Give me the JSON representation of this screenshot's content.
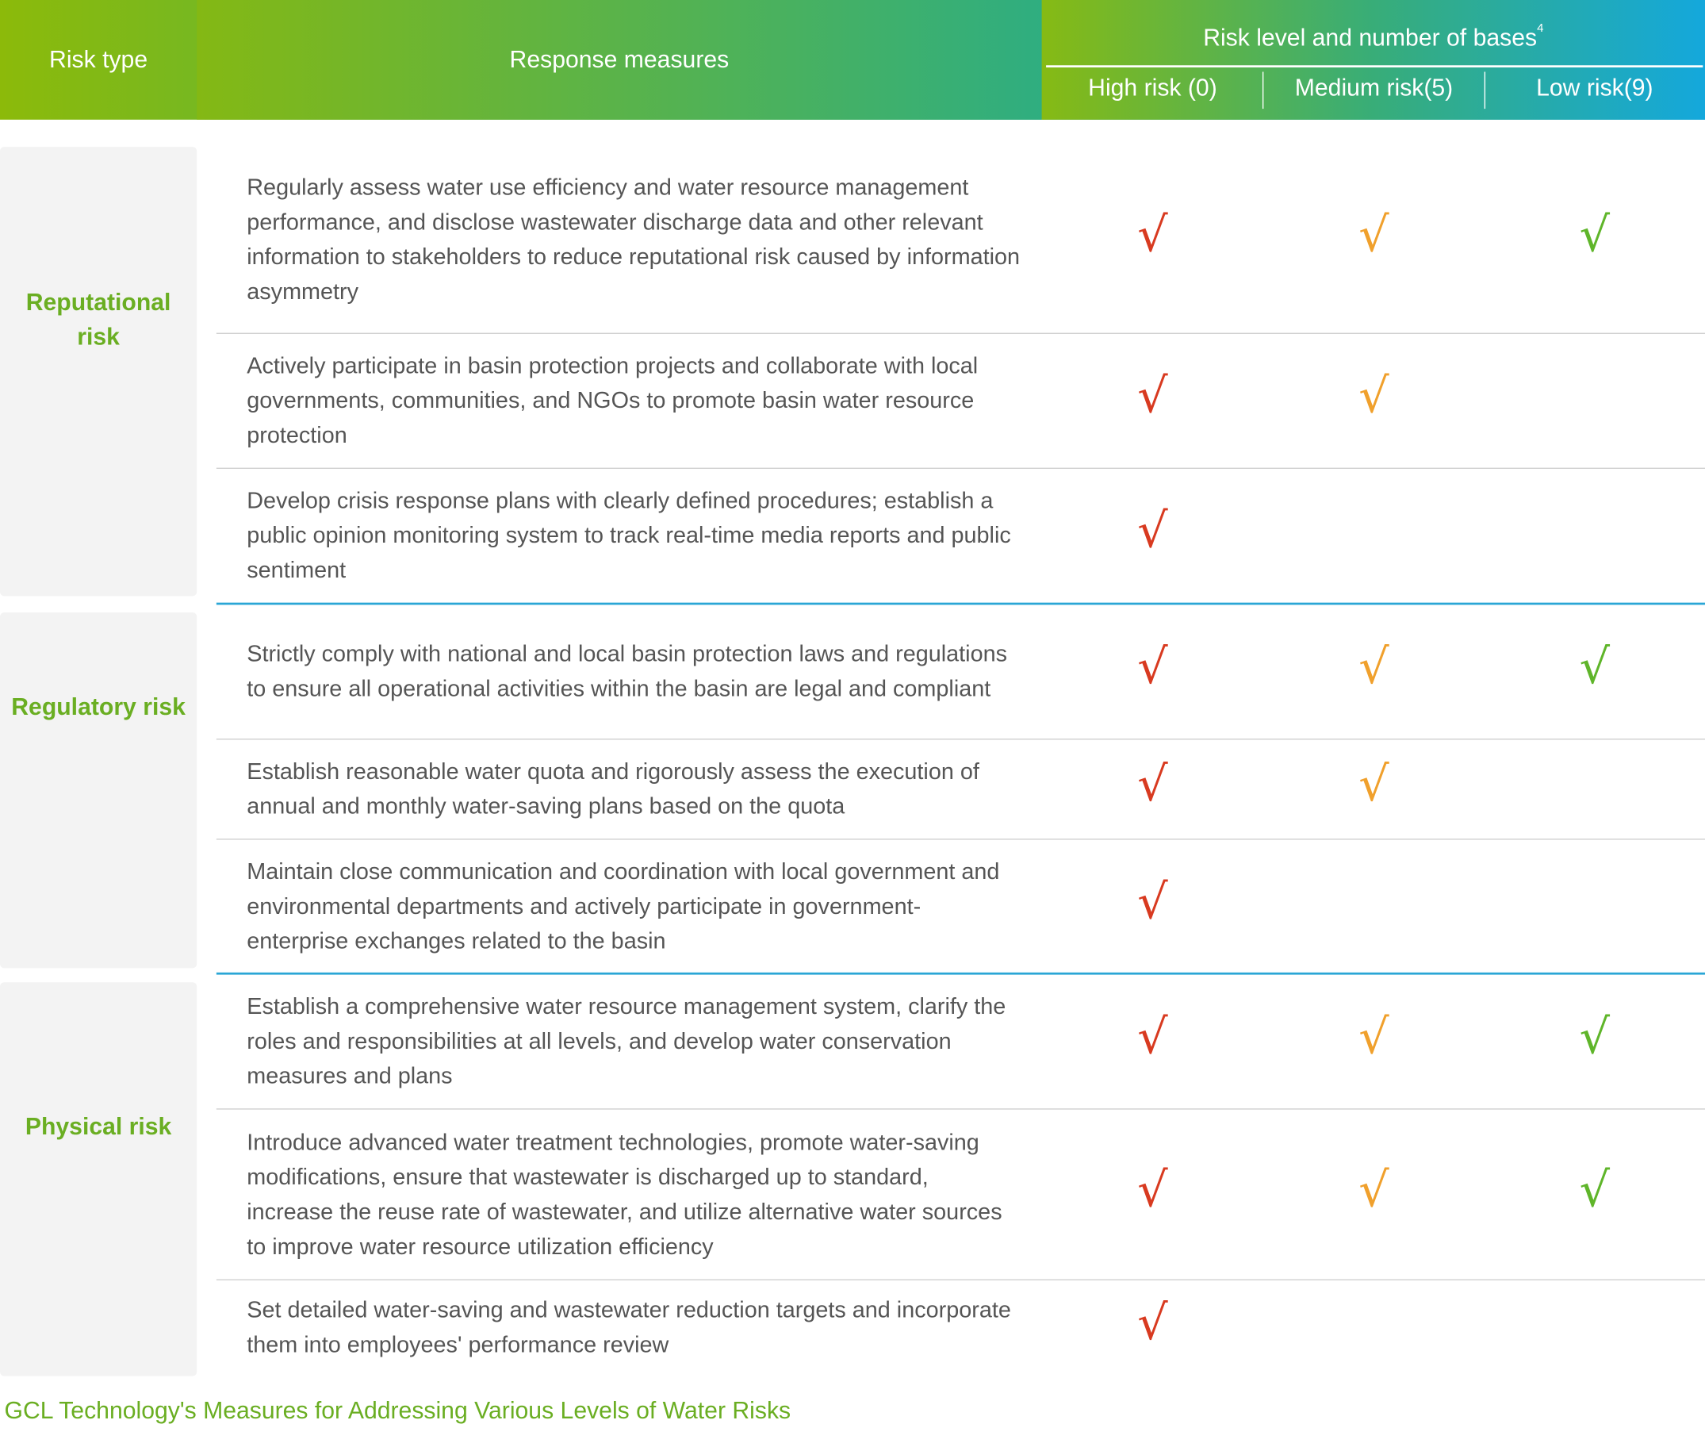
{
  "header": {
    "risk_type": "Risk type",
    "response_measures": "Response measures",
    "risk_level": "Risk level and number of bases",
    "footnote": "4",
    "levels": [
      "High risk (0)",
      "Medium risk(5)",
      "Low risk(9)"
    ]
  },
  "groups": [
    {
      "name": "Reputational risk",
      "rows": [
        {
          "measure": "Regularly assess water use efficiency and water resource management performance, and disclose wastewater discharge data and other relevant information to stakeholders to reduce reputational risk caused by information asymmetry",
          "marks": [
            "√",
            "√",
            "√"
          ]
        },
        {
          "measure": "Actively participate in basin protection projects and collaborate with local governments, communities, and NGOs to promote basin water resource protection",
          "marks": [
            "√",
            "√"
          ]
        },
        {
          "measure": "Develop crisis response plans with clearly defined procedures; establish a public opinion monitoring system to track real-time media reports and public sentiment",
          "marks": [
            "√"
          ]
        }
      ]
    },
    {
      "name": "Regulatory risk",
      "rows": [
        {
          "measure": "Strictly comply with national and local basin protection laws and regulations to ensure all operational activities within the basin are legal and compliant",
          "marks": [
            "√",
            "√",
            "√"
          ]
        },
        {
          "measure": "Establish reasonable water quota and rigorously assess the execution of annual and monthly water-saving plans based on the quota",
          "marks": [
            "√",
            "√"
          ]
        },
        {
          "measure": "Maintain close communication and coordination with local government and environmental departments and actively participate in government-enterprise exchanges related to the basin",
          "marks": [
            "√"
          ]
        }
      ]
    },
    {
      "name": "Physical risk",
      "rows": [
        {
          "measure": "Establish a comprehensive water resource management system, clarify the roles and responsibilities at all levels, and develop water conservation measures and plans",
          "marks": [
            "√",
            "√",
            "√"
          ]
        },
        {
          "measure": "Introduce advanced water treatment technologies, promote water-saving modifications, ensure that wastewater is discharged up to standard, increase the reuse rate of wastewater, and utilize alternative water sources to improve water resource utilization efficiency",
          "marks": [
            "√",
            "√",
            "√"
          ]
        },
        {
          "measure": "Set detailed water-saving and wastewater reduction targets and incorporate them into employees' performance review",
          "marks": [
            "√"
          ]
        }
      ]
    }
  ],
  "caption": "GCL Technology's Measures for Addressing Various Levels of Water Risks"
}
